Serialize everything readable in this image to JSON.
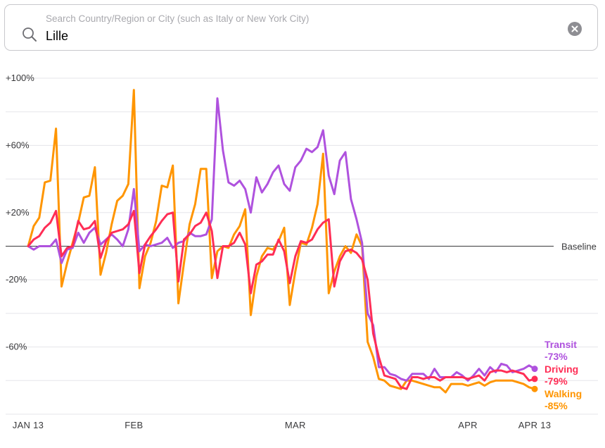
{
  "search": {
    "placeholder": "Search Country/Region or City (such as Italy or New York City)",
    "value": "Lille",
    "search_icon": "magnifier-icon",
    "clear_icon": "clear-circle-icon"
  },
  "chart_data": {
    "type": "line",
    "title": "",
    "xlabel": "",
    "ylabel": "",
    "ylim": [
      -100,
      100
    ],
    "baseline_label": "Baseline",
    "y_ticks": [
      {
        "value": 100,
        "label": "+100%"
      },
      {
        "value": 60,
        "label": "+60%"
      },
      {
        "value": 20,
        "label": "+20%"
      },
      {
        "value": -20,
        "label": "-20%"
      },
      {
        "value": -60,
        "label": "-60%"
      }
    ],
    "grid_values": [
      100,
      80,
      60,
      40,
      20,
      -20,
      -40,
      -60,
      -80,
      -100
    ],
    "x_ticks": [
      {
        "day": 0,
        "label": "JAN 13"
      },
      {
        "day": 19,
        "label": "FEB"
      },
      {
        "day": 48,
        "label": "MAR"
      },
      {
        "day": 79,
        "label": "APR"
      },
      {
        "day": 91,
        "label": "APR 13"
      }
    ],
    "x_domain": [
      0,
      91
    ],
    "series": [
      {
        "name": "Transit",
        "end_value": "-73%",
        "color": "#af52de",
        "values": [
          0,
          -2,
          0,
          0,
          0,
          4,
          -10,
          -2,
          -1,
          8,
          2,
          8,
          11,
          1,
          4,
          7,
          4,
          0,
          10,
          34,
          -3,
          1,
          0,
          1,
          2,
          5,
          -1,
          2,
          3,
          8,
          6,
          6,
          7,
          16,
          88,
          57,
          38,
          36,
          39,
          34,
          20,
          41,
          32,
          37,
          44,
          48,
          37,
          33,
          47,
          51,
          58,
          56,
          59,
          69,
          42,
          31,
          51,
          56,
          28,
          16,
          2,
          -40,
          -47,
          -72,
          -72,
          -76,
          -77,
          -79,
          -80,
          -76,
          -76,
          -76,
          -79,
          -73,
          -78,
          -78,
          -78,
          -75,
          -77,
          -80,
          -77,
          -73,
          -77,
          -72,
          -75,
          -70,
          -71,
          -75,
          -74,
          -73,
          -71,
          -73
        ]
      },
      {
        "name": "Driving",
        "end_value": "-79%",
        "color": "#ff2d55",
        "values": [
          0,
          4,
          6,
          11,
          14,
          21,
          -6,
          -1,
          0,
          15,
          10,
          11,
          15,
          -7,
          3,
          8,
          9,
          10,
          13,
          21,
          -16,
          1,
          6,
          10,
          15,
          19,
          20,
          -21,
          4,
          7,
          12,
          14,
          20,
          9,
          -19,
          0,
          0,
          2,
          8,
          1,
          -28,
          -11,
          -9,
          -5,
          -5,
          4,
          -3,
          -22,
          -6,
          3,
          2,
          4,
          10,
          14,
          16,
          -24,
          -9,
          -3,
          -2,
          -4,
          -8,
          -20,
          -52,
          -66,
          -77,
          -78,
          -79,
          -84,
          -85,
          -78,
          -78,
          -79,
          -78,
          -78,
          -80,
          -78,
          -78,
          -78,
          -78,
          -79,
          -78,
          -77,
          -80,
          -75,
          -74,
          -74,
          -75,
          -74,
          -75,
          -76,
          -80,
          -79
        ]
      },
      {
        "name": "Walking",
        "end_value": "-85%",
        "color": "#ff9500",
        "values": [
          0,
          12,
          17,
          38,
          39,
          70,
          -24,
          -10,
          2,
          14,
          29,
          30,
          47,
          -17,
          -4,
          13,
          27,
          30,
          37,
          93,
          -25,
          -6,
          2,
          15,
          36,
          35,
          48,
          -34,
          -10,
          13,
          25,
          46,
          46,
          -19,
          -3,
          0,
          -1,
          7,
          12,
          22,
          -41,
          -18,
          -6,
          -1,
          -2,
          3,
          11,
          -35,
          -15,
          2,
          1,
          11,
          25,
          55,
          -28,
          -15,
          -6,
          0,
          -4,
          7,
          0,
          -57,
          -66,
          -79,
          -80,
          -83,
          -84,
          -85,
          -80,
          -80,
          -81,
          -82,
          -83,
          -84,
          -84,
          -87,
          -82,
          -82,
          -82,
          -83,
          -82,
          -81,
          -83,
          -81,
          -80,
          -80,
          -80,
          -80,
          -81,
          -82,
          -84,
          -85
        ]
      }
    ]
  }
}
